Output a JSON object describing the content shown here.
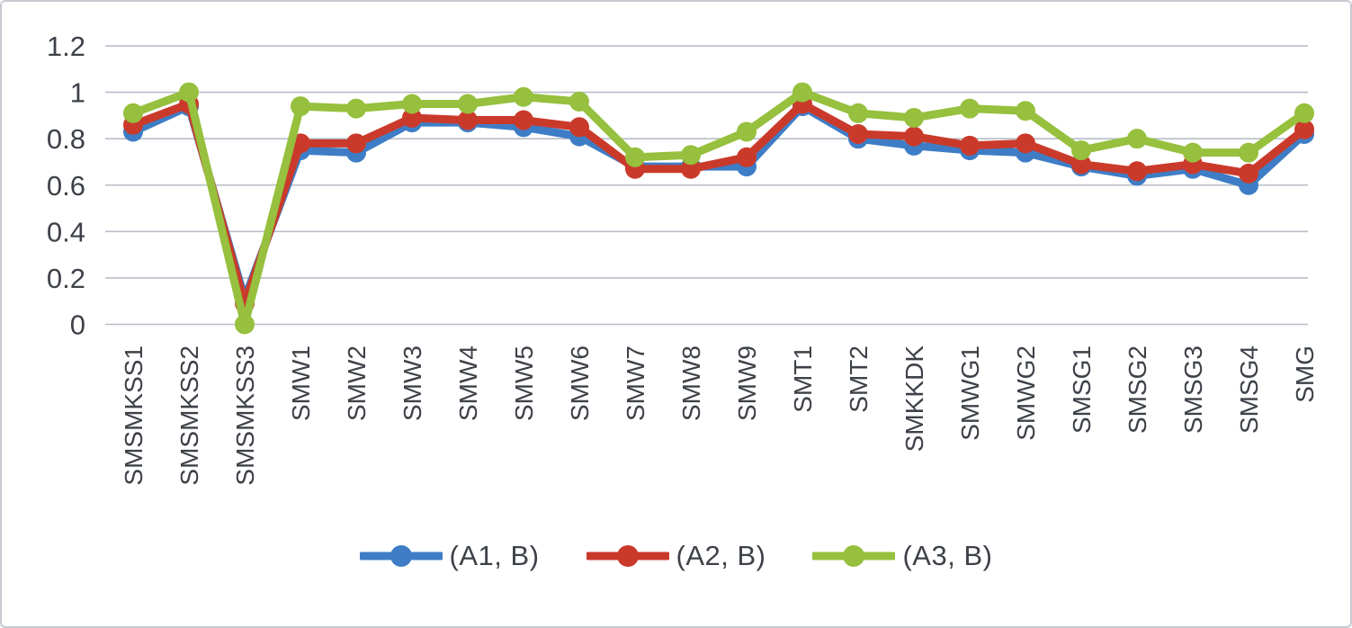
{
  "chart_data": {
    "type": "line",
    "title": "",
    "xlabel": "",
    "ylabel": "",
    "ylim": [
      0,
      1.2
    ],
    "grid": true,
    "legend_position": "bottom",
    "gridline_color": "#b8bec7",
    "text_color": "#3d4148",
    "ytick_labels": [
      "0",
      "0.2",
      "0.4",
      "0.6",
      "0.8",
      "1",
      "1.2"
    ],
    "ytick_values": [
      0,
      0.2,
      0.4,
      0.6,
      0.8,
      1.0,
      1.2
    ],
    "categories": [
      "SMSMKSS1",
      "SMSMKSS2",
      "SMSMKSS3",
      "SMW1",
      "SMW2",
      "SMW3",
      "SMW4",
      "SMW5",
      "SMW6",
      "SMW7",
      "SMW8",
      "SMW9",
      "SMT1",
      "SMT2",
      "SMKKDK",
      "SMWG1",
      "SMWG2",
      "SMSG1",
      "SMSG2",
      "SMSG3",
      "SMSG4",
      "SMG"
    ],
    "series": [
      {
        "name": "(A1, B)",
        "color": "#3e7dc6",
        "values": [
          0.83,
          0.94,
          0.11,
          0.75,
          0.74,
          0.87,
          0.87,
          0.85,
          0.81,
          0.68,
          0.68,
          0.68,
          0.94,
          0.8,
          0.77,
          0.75,
          0.74,
          0.68,
          0.64,
          0.67,
          0.6,
          0.82
        ]
      },
      {
        "name": "(A2, B)",
        "color": "#ca3a2b",
        "values": [
          0.86,
          0.95,
          0.09,
          0.78,
          0.78,
          0.89,
          0.88,
          0.88,
          0.85,
          0.67,
          0.67,
          0.72,
          0.95,
          0.82,
          0.81,
          0.77,
          0.78,
          0.69,
          0.66,
          0.69,
          0.65,
          0.84
        ]
      },
      {
        "name": "(A3, B)",
        "color": "#96c03d",
        "values": [
          0.91,
          1.0,
          0.0,
          0.94,
          0.93,
          0.95,
          0.95,
          0.98,
          0.96,
          0.72,
          0.73,
          0.83,
          1.0,
          0.91,
          0.89,
          0.93,
          0.92,
          0.75,
          0.8,
          0.74,
          0.74,
          0.91
        ]
      }
    ]
  }
}
